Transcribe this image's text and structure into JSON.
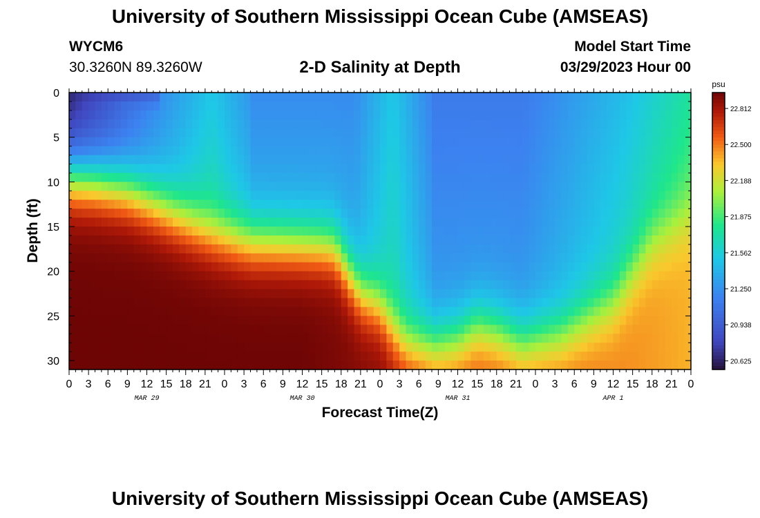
{
  "header": {
    "title": "University of Southern Mississippi Ocean Cube (AMSEAS)",
    "station_id": "WYCM6",
    "coordinates": "30.3260N  89.3260W",
    "plot_title": "2-D Salinity at Depth",
    "start_label": "Model Start Time",
    "start_value": "03/29/2023 Hour 00"
  },
  "footer": {
    "title": "University of Southern Mississippi Ocean Cube (AMSEAS)"
  },
  "chart_data": {
    "type": "heatmap",
    "title": "2-D Salinity at Depth",
    "xlabel": "Forecast Time(Z)",
    "ylabel": "Depth (ft)",
    "x_hours_range": [
      0,
      96
    ],
    "x_ticks": [
      "0",
      "3",
      "6",
      "9",
      "12",
      "15",
      "18",
      "21",
      "0",
      "3",
      "6",
      "9",
      "12",
      "15",
      "18",
      "21",
      "0",
      "3",
      "6",
      "9",
      "12",
      "15",
      "18",
      "21",
      "0",
      "3",
      "6",
      "9",
      "12",
      "15",
      "18",
      "21",
      "0"
    ],
    "day_labels": [
      {
        "label": "MAR 29",
        "hour": 12
      },
      {
        "label": "MAR 30",
        "hour": 36
      },
      {
        "label": "MAR 31",
        "hour": 60
      },
      {
        "label": "APR 1",
        "hour": 84
      }
    ],
    "y_ticks": [
      "0",
      "5",
      "10",
      "15",
      "20",
      "25",
      "30"
    ],
    "y_range_ft": [
      0,
      31
    ],
    "colorbar": {
      "unit": "psu",
      "tick_labels": [
        "22.812",
        "22.500",
        "22.188",
        "21.875",
        "21.562",
        "21.250",
        "20.938",
        "20.625"
      ],
      "range": [
        20.55,
        22.95
      ]
    },
    "halocline_depth_ft": [
      {
        "hour": 0,
        "depth": 9.5
      },
      {
        "hour": 4,
        "depth": 10.0
      },
      {
        "hour": 9,
        "depth": 11.0
      },
      {
        "hour": 13,
        "depth": 12.5
      },
      {
        "hour": 18,
        "depth": 14.5
      },
      {
        "hour": 22,
        "depth": 16.0
      },
      {
        "hour": 27,
        "depth": 16.8
      },
      {
        "hour": 33,
        "depth": 17.0
      },
      {
        "hour": 39,
        "depth": 17.2
      },
      {
        "hour": 41,
        "depth": 17.5
      },
      {
        "hour": 43,
        "depth": 20.0
      },
      {
        "hour": 45,
        "depth": 22.5
      },
      {
        "hour": 48,
        "depth": 24.0
      },
      {
        "hour": 50,
        "depth": 26.5
      },
      {
        "hour": 52,
        "depth": 28.0
      },
      {
        "hour": 56,
        "depth": 28.3
      },
      {
        "hour": 60,
        "depth": 27.5
      },
      {
        "hour": 63,
        "depth": 26.0
      },
      {
        "hour": 66,
        "depth": 26.5
      },
      {
        "hour": 70,
        "depth": 28.0
      },
      {
        "hour": 76,
        "depth": 27.0
      },
      {
        "hour": 84,
        "depth": 23.5
      },
      {
        "hour": 90,
        "depth": 17.0
      },
      {
        "hour": 96,
        "depth": 14.0
      }
    ]
  }
}
